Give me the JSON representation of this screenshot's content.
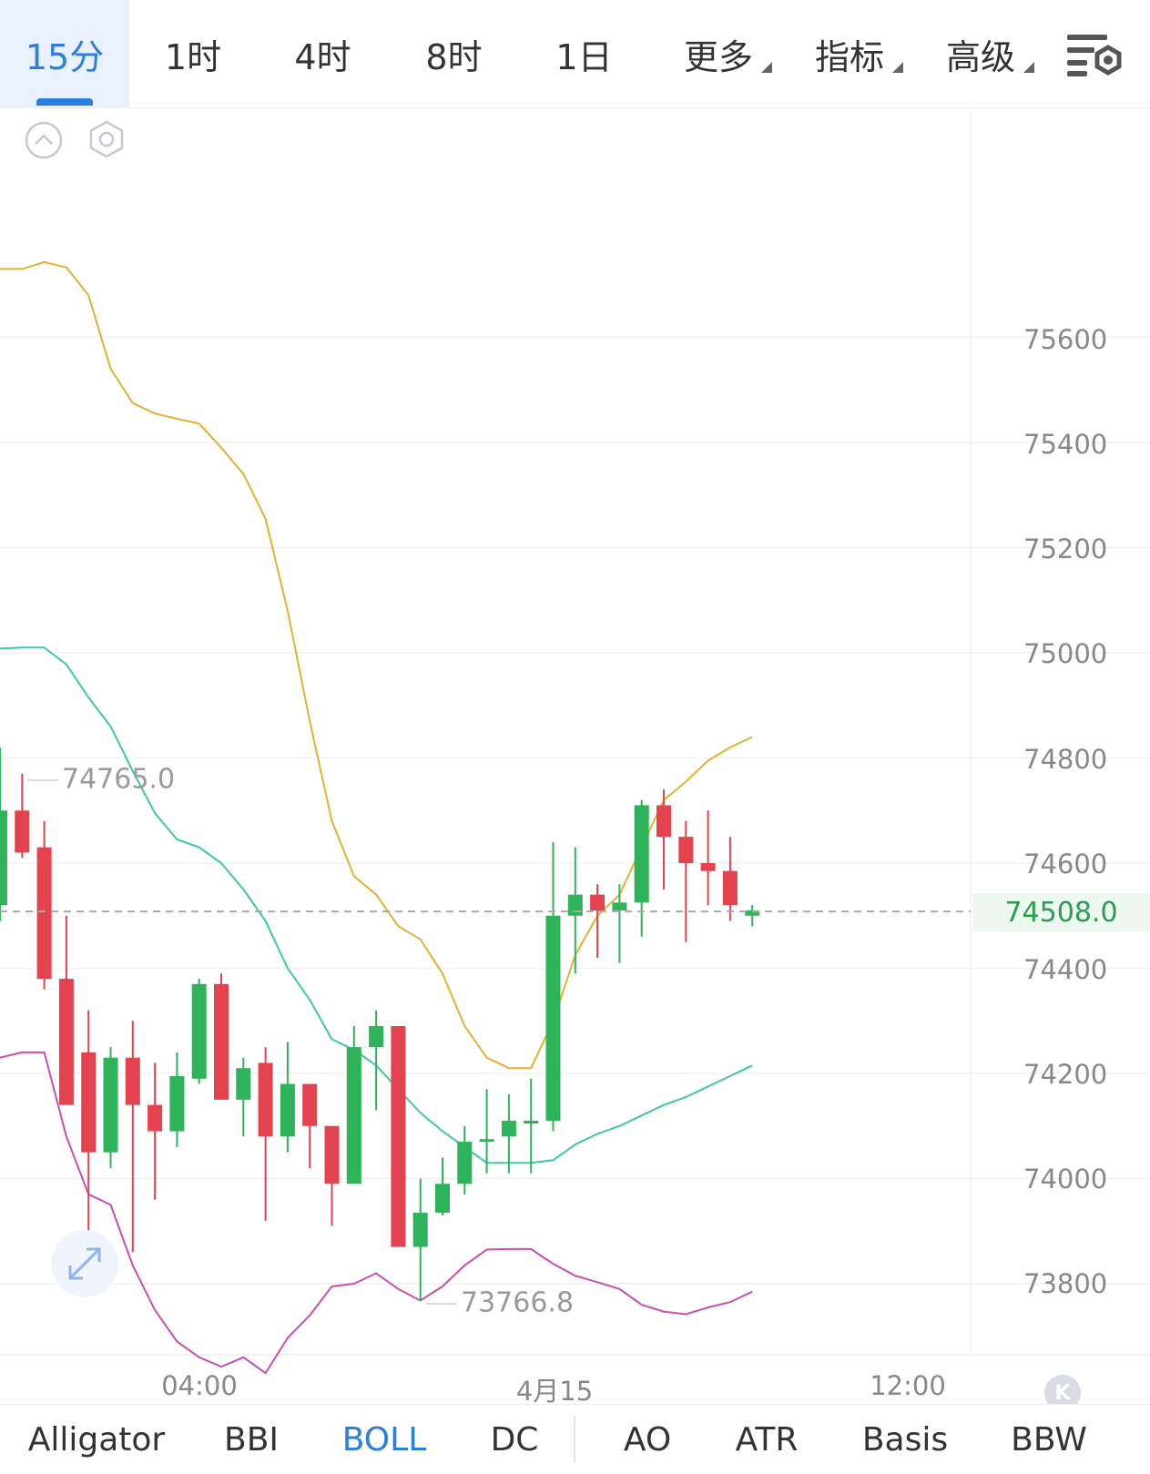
{
  "timeframe_tabs": [
    {
      "label": "15分",
      "active": true
    },
    {
      "label": "1时"
    },
    {
      "label": "4时"
    },
    {
      "label": "8时"
    },
    {
      "label": "1日"
    }
  ],
  "dropdowns": [
    {
      "label": "更多"
    },
    {
      "label": "指标"
    },
    {
      "label": "高级"
    }
  ],
  "icons": {
    "settings": "chart-settings-icon",
    "collapse": "collapse-up-icon",
    "gear": "hexagon-gear-icon",
    "expand": "expand-arrows-icon",
    "logo": "k-logo-icon"
  },
  "colors": {
    "accent": "#2a7fe0",
    "up": "#2fb35a",
    "down": "#e4424f",
    "boll_upper": "#e8b030",
    "boll_mid": "#3cc9a8",
    "boll_lower": "#d04db0"
  },
  "last_price": "74508.0",
  "annotations": {
    "high": "74765.0",
    "low": "73766.8"
  },
  "chart_data": {
    "type": "candlestick",
    "indicator": "BOLL",
    "y_ticks": [
      "75600",
      "75400",
      "75200",
      "75000",
      "74800",
      "74600",
      "74400",
      "74200",
      "74000",
      "73800"
    ],
    "ylim": [
      73650,
      75960
    ],
    "x_ticks": [
      "04:00",
      "4月15",
      "12:00"
    ],
    "grid": true,
    "candles": [
      {
        "o": 74520,
        "h": 74820,
        "l": 74490,
        "c": 74700
      },
      {
        "o": 74700,
        "h": 74770,
        "l": 74610,
        "c": 74620
      },
      {
        "o": 74630,
        "h": 74680,
        "l": 74360,
        "c": 74380
      },
      {
        "o": 74380,
        "h": 74500,
        "l": 74140,
        "c": 74140
      },
      {
        "o": 74240,
        "h": 74320,
        "l": 73820,
        "c": 74050
      },
      {
        "o": 74050,
        "h": 74250,
        "l": 74020,
        "c": 74230
      },
      {
        "o": 74230,
        "h": 74300,
        "l": 73860,
        "c": 74140
      },
      {
        "o": 74140,
        "h": 74220,
        "l": 73960,
        "c": 74090
      },
      {
        "o": 74090,
        "h": 74240,
        "l": 74060,
        "c": 74195
      },
      {
        "o": 74190,
        "h": 74380,
        "l": 74180,
        "c": 74370
      },
      {
        "o": 74370,
        "h": 74390,
        "l": 74150,
        "c": 74150
      },
      {
        "o": 74150,
        "h": 74230,
        "l": 74080,
        "c": 74210
      },
      {
        "o": 74220,
        "h": 74250,
        "l": 73920,
        "c": 74080
      },
      {
        "o": 74080,
        "h": 74260,
        "l": 74050,
        "c": 74180
      },
      {
        "o": 74180,
        "h": 74170,
        "l": 74020,
        "c": 74100
      },
      {
        "o": 74100,
        "h": 74100,
        "l": 73910,
        "c": 73990
      },
      {
        "o": 73990,
        "h": 74290,
        "l": 73990,
        "c": 74250
      },
      {
        "o": 74250,
        "h": 74320,
        "l": 74130,
        "c": 74290
      },
      {
        "o": 74290,
        "h": 74290,
        "l": 73870,
        "c": 73870
      },
      {
        "o": 73870,
        "h": 74000,
        "l": 73767,
        "c": 73935
      },
      {
        "o": 73935,
        "h": 74040,
        "l": 73930,
        "c": 73990
      },
      {
        "o": 73990,
        "h": 74100,
        "l": 73970,
        "c": 74070
      },
      {
        "o": 74070,
        "h": 74170,
        "l": 74010,
        "c": 74075
      },
      {
        "o": 74080,
        "h": 74160,
        "l": 74010,
        "c": 74110
      },
      {
        "o": 74110,
        "h": 74190,
        "l": 74010,
        "c": 74110
      },
      {
        "o": 74110,
        "h": 74640,
        "l": 74090,
        "c": 74500
      },
      {
        "o": 74500,
        "h": 74630,
        "l": 74390,
        "c": 74540
      },
      {
        "o": 74540,
        "h": 74560,
        "l": 74420,
        "c": 74510
      },
      {
        "o": 74510,
        "h": 74560,
        "l": 74410,
        "c": 74525
      },
      {
        "o": 74525,
        "h": 74720,
        "l": 74460,
        "c": 74710
      },
      {
        "o": 74710,
        "h": 74740,
        "l": 74550,
        "c": 74650
      },
      {
        "o": 74650,
        "h": 74680,
        "l": 74450,
        "c": 74600
      },
      {
        "o": 74600,
        "h": 74700,
        "l": 74520,
        "c": 74585
      },
      {
        "o": 74585,
        "h": 74650,
        "l": 74490,
        "c": 74520
      },
      {
        "o": 74500,
        "h": 74520,
        "l": 74480,
        "c": 74510
      }
    ],
    "boll_upper": [
      75730,
      75730,
      75743,
      75733,
      75680,
      75540,
      75475,
      75455,
      75445,
      75436,
      75390,
      75340,
      75255,
      75080,
      74870,
      74680,
      74575,
      74540,
      74480,
      74455,
      74390,
      74290,
      74230,
      74210,
      74210,
      74300,
      74425,
      74500,
      74540,
      74630,
      74720,
      74755,
      74795,
      74820,
      74840
    ],
    "boll_mid": [
      75008,
      75010,
      75010,
      74978,
      74915,
      74860,
      74775,
      74695,
      74645,
      74630,
      74600,
      74550,
      74490,
      74400,
      74340,
      74265,
      74245,
      74215,
      74170,
      74125,
      74090,
      74060,
      74030,
      74030,
      74030,
      74035,
      74065,
      74085,
      74100,
      74120,
      74140,
      74155,
      74175,
      74195,
      74215
    ],
    "boll_lower": [
      74230,
      74240,
      74240,
      74080,
      73970,
      73950,
      73835,
      73750,
      73690,
      73660,
      73642,
      73660,
      73630,
      73697,
      73740,
      73795,
      73800,
      73820,
      73790,
      73768,
      73795,
      73835,
      73865,
      73866,
      73866,
      73838,
      73815,
      73803,
      73790,
      73760,
      73747,
      73742,
      73755,
      73765,
      73785
    ]
  },
  "indicator_tabs": [
    {
      "label": "Alligator"
    },
    {
      "label": "BBI"
    },
    {
      "label": "BOLL",
      "active": true
    },
    {
      "label": "DC"
    },
    {
      "label": "AO"
    },
    {
      "label": "ATR"
    },
    {
      "label": "Basis"
    },
    {
      "label": "BBW"
    }
  ]
}
